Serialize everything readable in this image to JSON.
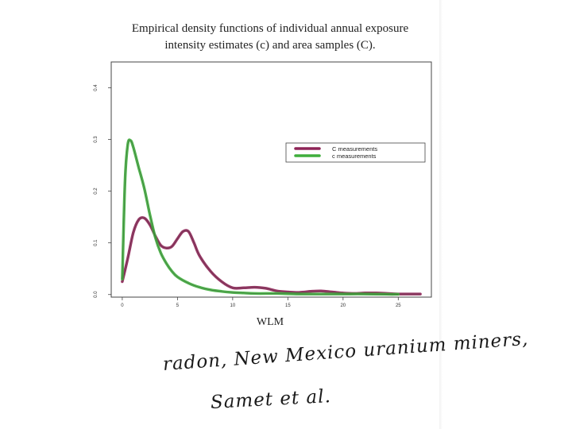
{
  "title_line1": "Empirical density functions of individual annual exposure",
  "title_line2": "intensity estimates (c) and area samples (C).",
  "handwritten_line1": "radon, New Mexico uranium miners,",
  "handwritten_line2": "Samet et al.",
  "chart_data": {
    "type": "line",
    "xlabel": "WLM",
    "ylabel": "",
    "xlim": [
      -1,
      28
    ],
    "ylim": [
      -0.005,
      0.45
    ],
    "x_ticks": [
      0,
      5,
      10,
      15,
      20,
      25
    ],
    "x_tick_labels": [
      "0",
      "5",
      "10",
      "15",
      "20",
      "25"
    ],
    "y_ticks": [
      0.0,
      0.1,
      0.2,
      0.3,
      0.4
    ],
    "y_tick_labels": [
      "0.0",
      "0.1",
      "0.2",
      "0.3",
      "0.4"
    ],
    "legend_position": "top-right",
    "series": [
      {
        "name": "C measurements",
        "color": "#8e2457",
        "x": [
          0,
          0.5,
          1,
          1.5,
          2,
          2.5,
          3,
          3.5,
          4,
          4.5,
          5,
          5.5,
          6,
          6.5,
          7,
          8,
          9,
          10,
          11,
          12,
          13,
          14,
          15,
          16,
          17,
          18,
          19,
          20,
          21,
          22,
          23,
          24,
          25,
          26,
          27
        ],
        "y": [
          0.025,
          0.07,
          0.12,
          0.145,
          0.148,
          0.135,
          0.113,
          0.095,
          0.09,
          0.093,
          0.108,
          0.122,
          0.122,
          0.1,
          0.075,
          0.045,
          0.025,
          0.013,
          0.013,
          0.014,
          0.012,
          0.007,
          0.005,
          0.004,
          0.006,
          0.007,
          0.005,
          0.003,
          0.002,
          0.003,
          0.003,
          0.002,
          0.001,
          0.001,
          0.001
        ]
      },
      {
        "name": "c measurements",
        "color": "#3fae3c",
        "x": [
          0,
          0.25,
          0.5,
          0.75,
          1,
          1.5,
          2,
          2.5,
          3,
          3.5,
          4,
          4.5,
          5,
          6,
          7,
          8,
          9,
          10,
          11,
          12,
          14,
          16,
          18,
          20,
          22,
          24,
          25
        ],
        "y": [
          0.03,
          0.22,
          0.29,
          0.298,
          0.285,
          0.245,
          0.205,
          0.155,
          0.11,
          0.08,
          0.06,
          0.045,
          0.034,
          0.022,
          0.014,
          0.009,
          0.006,
          0.004,
          0.003,
          0.002,
          0.002,
          0.001,
          0.001,
          0.001,
          0.001,
          0.0005,
          0.0005
        ]
      }
    ]
  }
}
